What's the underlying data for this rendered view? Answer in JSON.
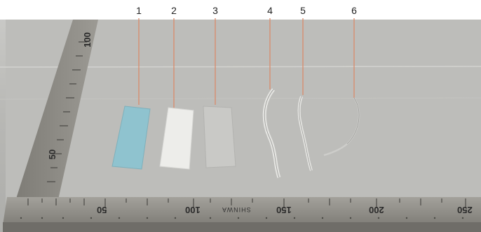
{
  "sample_labels": [
    "1",
    "2",
    "3",
    "4",
    "5",
    "6"
  ],
  "ruler": {
    "bottom_ticks": [
      "50",
      "100",
      "150",
      "200",
      "250"
    ],
    "side_ticks": [
      "50",
      "100"
    ],
    "brand": "SHINWA"
  },
  "colors": {
    "background": "#b9b9b6",
    "ruler": "#8e8c86",
    "leader_line": "#d98a6a",
    "sample_1": "#8fc3cf",
    "sample_2": "#ededea",
    "sample_3": "#cfcfcc"
  }
}
